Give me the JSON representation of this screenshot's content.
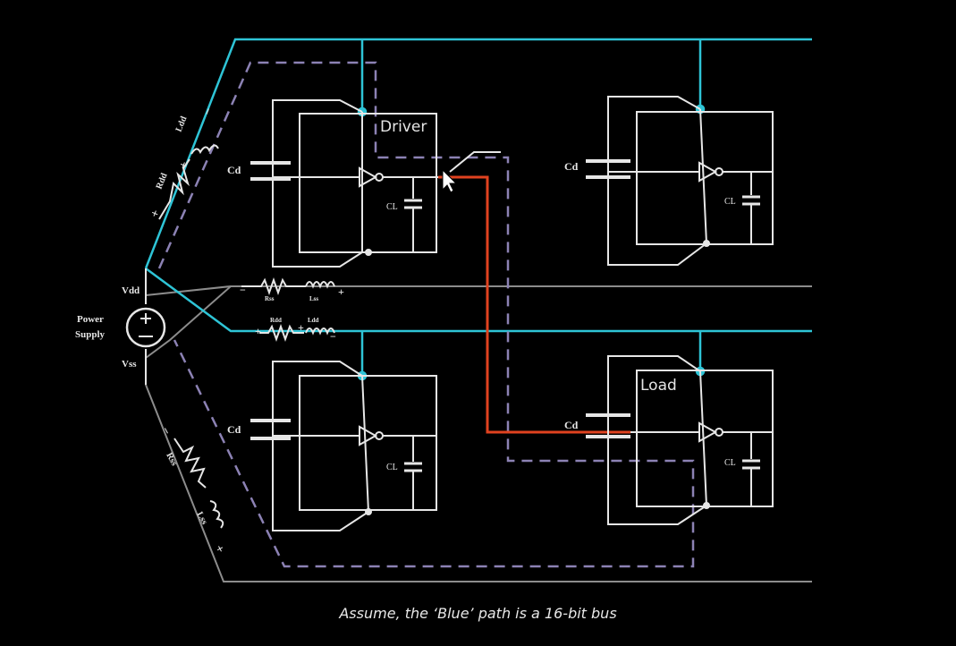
{
  "labels": {
    "driver": "Driver",
    "load": "Load",
    "cd": "Cd",
    "cl": "CL",
    "vdd": "Vdd",
    "vss": "Vss",
    "power": "Power",
    "supply": "Supply",
    "rdd": "Rdd",
    "ldd": "Ldd",
    "rss": "Rss",
    "lss": "Lss",
    "plus": "+",
    "minus": "−"
  },
  "caption": "Assume, the ‘Blue’ path is a 16-bit bus",
  "colors": {
    "background": "#000000",
    "bus": "#2ec4d6",
    "wire": "#e6e6e6",
    "gnd_rail": "#8c8c8c",
    "signal": "#e0421f",
    "return_path": "#8c82b4"
  }
}
